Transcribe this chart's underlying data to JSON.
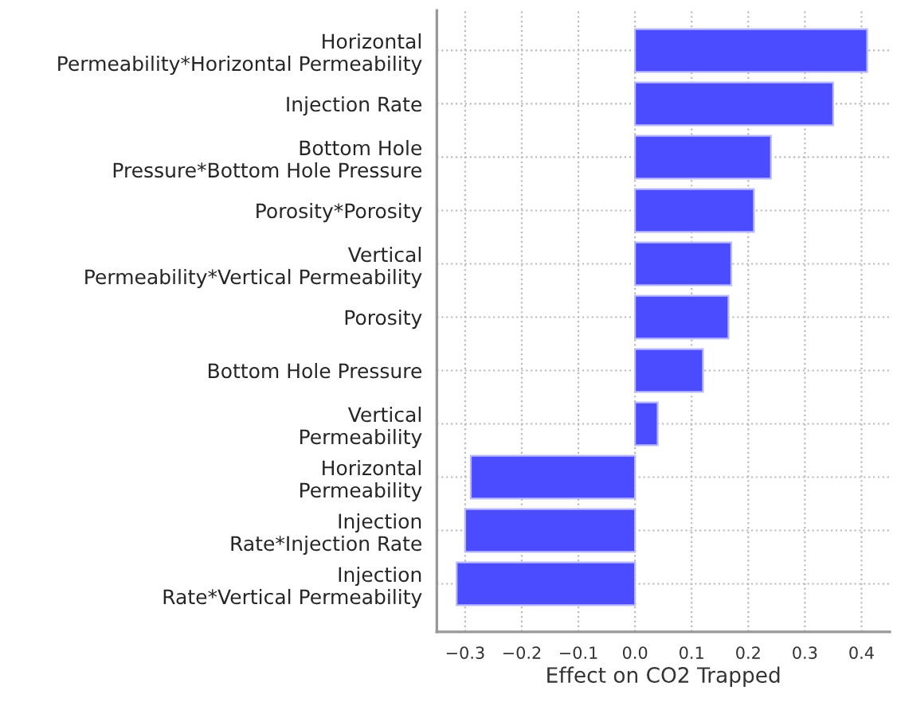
{
  "chart_data": {
    "type": "bar",
    "orientation": "horizontal",
    "xlabel": "Effect on CO2 Trapped",
    "categories": [
      "Horizontal\nPermeability*Horizontal Permeability",
      "Injection Rate",
      "Bottom Hole\nPressure*Bottom Hole Pressure",
      "Porosity*Porosity",
      "Vertical\nPermeability*Vertical Permeability",
      "Porosity",
      "Bottom Hole Pressure",
      "Vertical\nPermeability",
      "Horizontal\nPermeability",
      "Injection\nRate*Injection Rate",
      "Injection\nRate*Vertical Permeability"
    ],
    "values": [
      0.41,
      0.35,
      0.24,
      0.21,
      0.17,
      0.165,
      0.12,
      0.04,
      -0.29,
      -0.3,
      -0.315
    ],
    "color": "#4b4bff",
    "xlim": [
      -0.35,
      0.45
    ],
    "xticks": [
      {
        "value": -0.3,
        "label": "−0.3"
      },
      {
        "value": -0.2,
        "label": "−0.2"
      },
      {
        "value": -0.1,
        "label": "−0.1"
      },
      {
        "value": 0,
        "label": "0.0"
      },
      0.1,
      0.2,
      0.3,
      0.4
    ],
    "grid": true
  }
}
